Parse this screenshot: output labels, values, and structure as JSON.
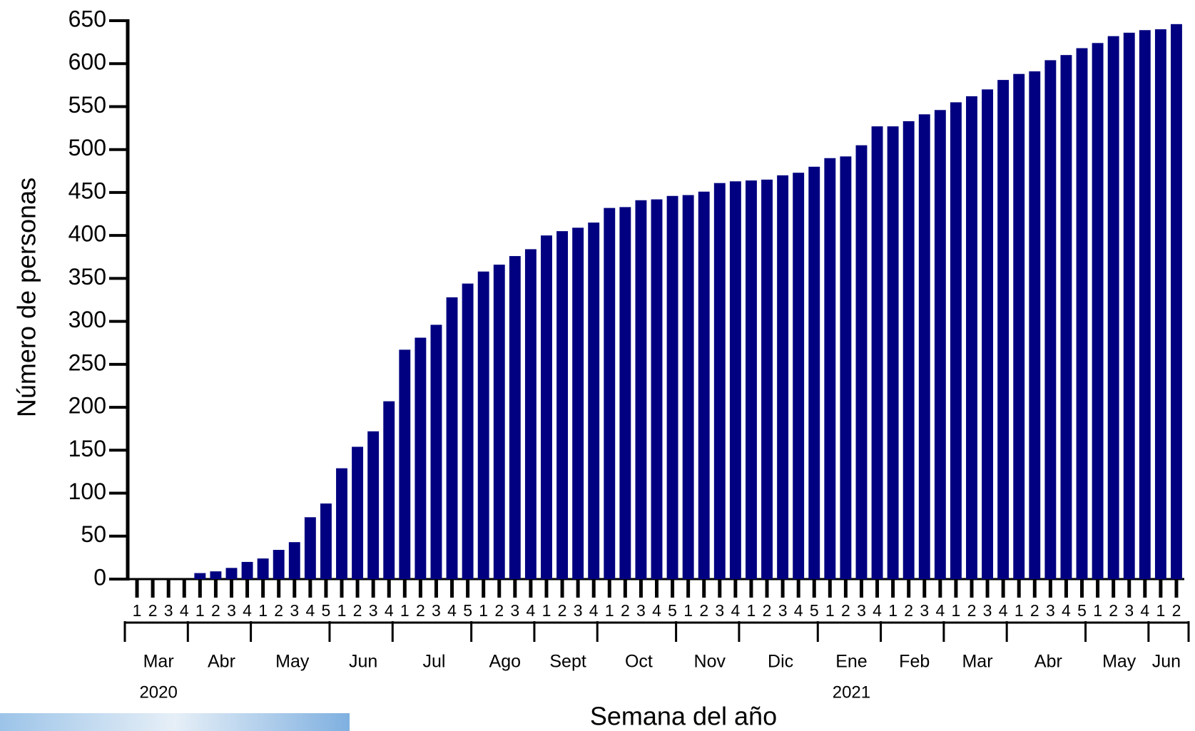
{
  "chart_data": {
    "type": "bar",
    "y_label": "Número de personas",
    "x_label": "Semana del año",
    "color": "#000080",
    "ylim": [
      0,
      650
    ],
    "yticks": [
      0,
      50,
      100,
      150,
      200,
      250,
      300,
      350,
      400,
      450,
      500,
      550,
      600,
      650
    ],
    "grid": false,
    "month_groups": [
      {
        "label": "Mar",
        "year": "2020",
        "weeks": [
          "1",
          "2",
          "3",
          "4"
        ]
      },
      {
        "label": "Abr",
        "weeks": [
          "1",
          "2",
          "3",
          "4"
        ]
      },
      {
        "label": "May",
        "weeks": [
          "1",
          "2",
          "3",
          "4",
          "5"
        ]
      },
      {
        "label": "Jun",
        "weeks": [
          "1",
          "2",
          "3",
          "4"
        ]
      },
      {
        "label": "Jul",
        "weeks": [
          "1",
          "2",
          "3",
          "4",
          "5"
        ]
      },
      {
        "label": "Ago",
        "weeks": [
          "1",
          "2",
          "3",
          "4"
        ]
      },
      {
        "label": "Sept",
        "weeks": [
          "1",
          "2",
          "3",
          "4"
        ]
      },
      {
        "label": "Oct",
        "weeks": [
          "1",
          "2",
          "3",
          "4",
          "5"
        ]
      },
      {
        "label": "Nov",
        "weeks": [
          "1",
          "2",
          "3",
          "4"
        ]
      },
      {
        "label": "Dic",
        "weeks": [
          "1",
          "2",
          "3",
          "4",
          "5"
        ]
      },
      {
        "label": "Ene",
        "year": "2021",
        "weeks": [
          "1",
          "2",
          "3",
          "4"
        ]
      },
      {
        "label": "Feb",
        "weeks": [
          "1",
          "2",
          "3",
          "4"
        ]
      },
      {
        "label": "Mar",
        "weeks": [
          "1",
          "2",
          "3",
          "4"
        ]
      },
      {
        "label": "Abr",
        "weeks": [
          "1",
          "2",
          "3",
          "4",
          "5"
        ]
      },
      {
        "label": "May",
        "weeks": [
          "1",
          "2",
          "3",
          "4"
        ]
      },
      {
        "label": "Jun",
        "weeks": [
          "1",
          "2"
        ]
      }
    ],
    "values": [
      0,
      0,
      0,
      0,
      7,
      9,
      13,
      20,
      24,
      34,
      43,
      72,
      88,
      129,
      154,
      172,
      207,
      267,
      281,
      296,
      328,
      344,
      358,
      366,
      376,
      384,
      400,
      405,
      409,
      415,
      432,
      433,
      441,
      442,
      446,
      447,
      451,
      461,
      463,
      464,
      465,
      470,
      473,
      480,
      490,
      492,
      505,
      527,
      527,
      533,
      541,
      546,
      555,
      562,
      570,
      581,
      588,
      591,
      604,
      610,
      618,
      624,
      632,
      636,
      639,
      640,
      646
    ]
  }
}
